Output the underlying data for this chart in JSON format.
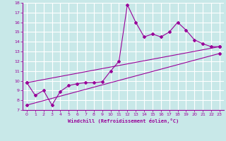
{
  "xlabel": "Windchill (Refroidissement éolien,°C)",
  "bg_color": "#c8e8e8",
  "line_color": "#990099",
  "grid_color": "#ffffff",
  "xlim": [
    -0.5,
    23.5
  ],
  "ylim": [
    7,
    18
  ],
  "xticks": [
    0,
    1,
    2,
    3,
    4,
    5,
    6,
    7,
    8,
    9,
    10,
    11,
    12,
    13,
    14,
    15,
    16,
    17,
    18,
    19,
    20,
    21,
    22,
    23
  ],
  "yticks": [
    7,
    8,
    9,
    10,
    11,
    12,
    13,
    14,
    15,
    16,
    17,
    18
  ],
  "line1_x": [
    0,
    1,
    2,
    3,
    4,
    5,
    6,
    7,
    8,
    9,
    10,
    11,
    12,
    13,
    14,
    15,
    16,
    17,
    18,
    19,
    20,
    21,
    22,
    23
  ],
  "line1_y": [
    9.8,
    8.5,
    9.0,
    7.5,
    8.9,
    9.5,
    9.7,
    9.8,
    9.8,
    9.9,
    11.0,
    12.0,
    17.8,
    16.0,
    14.5,
    14.8,
    14.5,
    15.0,
    16.0,
    15.2,
    14.2,
    13.8,
    13.5,
    13.5
  ],
  "line2_x": [
    0,
    23
  ],
  "line2_y": [
    9.8,
    13.5
  ],
  "line3_x": [
    0,
    23
  ],
  "line3_y": [
    7.5,
    12.8
  ]
}
